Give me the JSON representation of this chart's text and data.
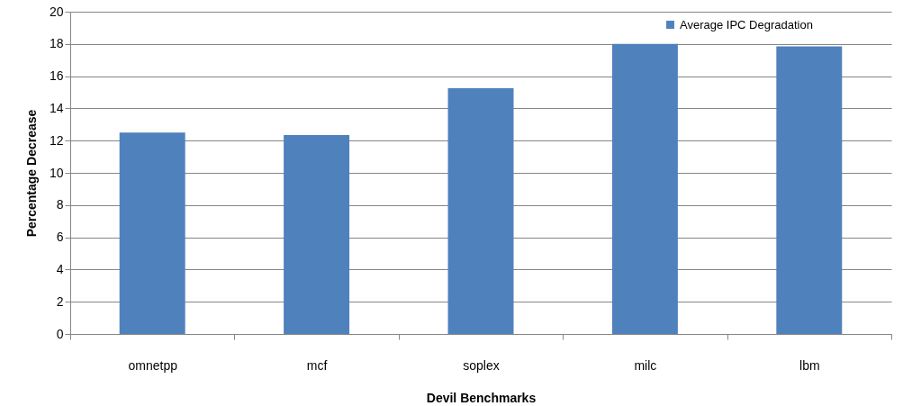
{
  "chart_data": {
    "type": "bar",
    "xlabel": "Devil Benchmarks",
    "ylabel": "Percentage Decrease",
    "categories": [
      "omnetpp",
      "mcf",
      "soplex",
      "milc",
      "lbm"
    ],
    "series": [
      {
        "name": "Average IPC Degradation",
        "color": "#4f81bd",
        "values": [
          12.5,
          12.35,
          15.25,
          18.0,
          17.85
        ]
      }
    ],
    "ylim": [
      0,
      20
    ],
    "yticks": [
      0,
      2,
      4,
      6,
      8,
      10,
      12,
      14,
      16,
      18,
      20
    ],
    "grid": "y",
    "legend": "top right"
  }
}
